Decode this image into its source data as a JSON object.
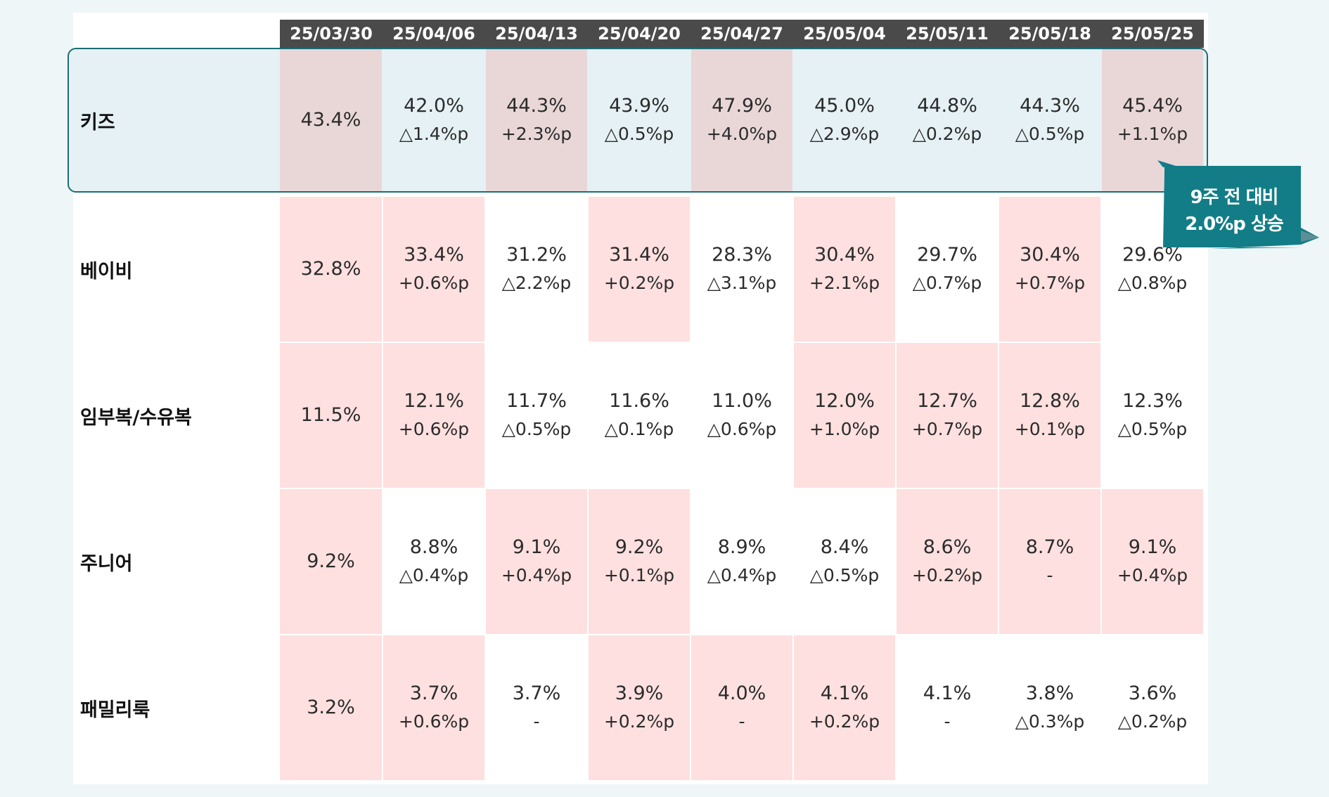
{
  "chart_data": {
    "type": "table",
    "columns": [
      "25/03/30",
      "25/04/06",
      "25/04/13",
      "25/04/20",
      "25/04/27",
      "25/05/04",
      "25/05/11",
      "25/05/18",
      "25/05/25"
    ],
    "rows": [
      {
        "label": "키즈",
        "values": [
          "43.4%",
          "42.0%",
          "44.3%",
          "43.9%",
          "47.9%",
          "45.0%",
          "44.8%",
          "44.3%",
          "45.4%"
        ],
        "changes": [
          "",
          "△1.4%p",
          "+2.3%p",
          "△0.5%p",
          "+4.0%p",
          "△2.9%p",
          "△0.2%p",
          "△0.5%p",
          "+1.1%p"
        ],
        "highlight": [
          true,
          false,
          true,
          false,
          true,
          false,
          false,
          false,
          true
        ]
      },
      {
        "label": "베이비",
        "values": [
          "32.8%",
          "33.4%",
          "31.2%",
          "31.4%",
          "28.3%",
          "30.4%",
          "29.7%",
          "30.4%",
          "29.6%"
        ],
        "changes": [
          "",
          "+0.6%p",
          "△2.2%p",
          "+0.2%p",
          "△3.1%p",
          "+2.1%p",
          "△0.7%p",
          "+0.7%p",
          "△0.8%p"
        ],
        "highlight": [
          true,
          true,
          false,
          true,
          false,
          true,
          false,
          true,
          false
        ]
      },
      {
        "label": "임부복/수유복",
        "values": [
          "11.5%",
          "12.1%",
          "11.7%",
          "11.6%",
          "11.0%",
          "12.0%",
          "12.7%",
          "12.8%",
          "12.3%"
        ],
        "changes": [
          "",
          "+0.6%p",
          "△0.5%p",
          "△0.1%p",
          "△0.6%p",
          "+1.0%p",
          "+0.7%p",
          "+0.1%p",
          "△0.5%p"
        ],
        "highlight": [
          true,
          true,
          false,
          false,
          false,
          true,
          true,
          true,
          false
        ]
      },
      {
        "label": "주니어",
        "values": [
          "9.2%",
          "8.8%",
          "9.1%",
          "9.2%",
          "8.9%",
          "8.4%",
          "8.6%",
          "8.7%",
          "9.1%"
        ],
        "changes": [
          "",
          "△0.4%p",
          "+0.4%p",
          "+0.1%p",
          "△0.4%p",
          "△0.5%p",
          "+0.2%p",
          "-",
          "+0.4%p"
        ],
        "highlight": [
          true,
          false,
          true,
          true,
          false,
          false,
          true,
          true,
          true
        ]
      },
      {
        "label": "패밀리룩",
        "values": [
          "3.2%",
          "3.7%",
          "3.7%",
          "3.9%",
          "4.0%",
          "4.1%",
          "4.1%",
          "3.8%",
          "3.6%"
        ],
        "changes": [
          "",
          "+0.6%p",
          "-",
          "+0.2%p",
          "-",
          "+0.2%p",
          "-",
          "△0.3%p",
          "△0.2%p"
        ],
        "highlight": [
          true,
          true,
          false,
          true,
          true,
          true,
          false,
          false,
          false
        ]
      }
    ],
    "highlighted_row": "키즈"
  },
  "callout": {
    "line1": "9주 전 대비",
    "line2": "2.0%p 상승"
  },
  "colors": {
    "header_bg": "#4a4a4a",
    "highlight_cell": "#fde0df",
    "highlight_row_bg": "#e5f1f4",
    "highlight_row_cell": "#e9d7d8",
    "callout_bg": "#127d87",
    "border_teal": "#1d6d75"
  }
}
